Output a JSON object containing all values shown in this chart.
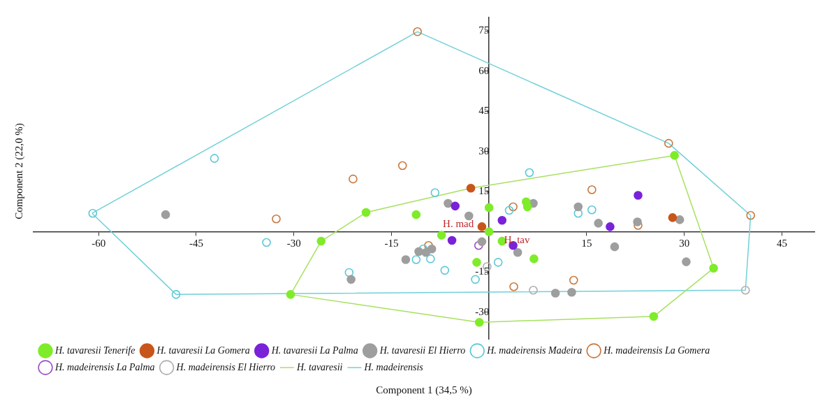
{
  "chart_data": {
    "type": "scatter",
    "xlabel": "Component 1 (34,5 %)",
    "ylabel": "Component 2 (22,0 %)",
    "xlim": [
      -70,
      50
    ],
    "xticks": [
      -60,
      -45,
      -30,
      -15,
      15,
      30,
      45
    ],
    "ylim": [
      -40,
      80
    ],
    "yticks": [
      -30,
      -15,
      15,
      30,
      45,
      60,
      75
    ],
    "grid": false,
    "legend": "bottom left",
    "marker": "circle",
    "annotations": [
      "H. mad",
      "H. tav"
    ],
    "series": [
      {
        "name": "H. tavaresii Tenerife",
        "color": "#7fec2a",
        "x": [
          28.5,
          34.5,
          25.3,
          -1.5,
          -30.5,
          -25.8,
          -18.9,
          -11.2,
          -7.3,
          0,
          0,
          5.7,
          5.9,
          2.0,
          -1.9,
          6.9
        ],
        "values": [
          28.5,
          -13.6,
          -31.6,
          -33.8,
          -23.4,
          -3.5,
          7.2,
          6.4,
          -1.3,
          9.0,
          0,
          11.2,
          9.3,
          -3.5,
          -11.4,
          -10.1
        ]
      },
      {
        "name": "H. tavaresii La Gomera",
        "color": "#c8561a",
        "x": [
          -2.8,
          -1.1,
          28.2
        ],
        "values": [
          16.3,
          1.9,
          5.3
        ]
      },
      {
        "name": "H. tavaresii La Palma",
        "color": "#7a22d8",
        "x": [
          -5.2,
          2.0,
          -5.7,
          3.7,
          22.9,
          18.6
        ],
        "values": [
          9.6,
          4.3,
          -3.2,
          -5.1,
          13.6,
          1.9
        ]
      },
      {
        "name": "H. tavaresii El Hierro",
        "color": "#9e9e9e",
        "x": [
          -49.7,
          -6.3,
          -3.1,
          6.8,
          -1.1,
          4.4,
          -8.8,
          -9.7,
          -10.8,
          -12.8,
          -21.2,
          13.7,
          16.8,
          19.3,
          22.8,
          29.3,
          30.3,
          10.2,
          12.7
        ],
        "values": [
          6.4,
          10.6,
          5.9,
          10.6,
          -3.7,
          -7.7,
          -6.4,
          -7.7,
          -7.4,
          -10.4,
          -17.8,
          9.3,
          3.2,
          -5.6,
          3.7,
          4.5,
          -11.2,
          -22.9,
          -22.6
        ]
      },
      {
        "name": "H. madeirensis Madeira",
        "color": "#5cc8d8",
        "x": [
          -60.9,
          -48.1,
          -42.2,
          -34.2,
          -8.3,
          6.2,
          3.1,
          -21.5,
          -11.2,
          -9.0,
          -10.1,
          -6.8,
          -2.1,
          1.4,
          13.7,
          15.8
        ],
        "values": [
          6.9,
          -23.4,
          27.4,
          -4.0,
          14.6,
          22.1,
          8.0,
          -15.2,
          -10.4,
          -10.1,
          -6.4,
          -14.4,
          -17.8,
          -11.4,
          6.9,
          8.2
        ]
      },
      {
        "name": "H. madeirensis La Gomera",
        "color": "#c87a40",
        "x": [
          -11.0,
          27.6,
          40.2,
          -20.9,
          -13.3,
          -32.7,
          -9.3,
          3.7,
          3.8,
          15.8,
          22.9,
          13.0
        ],
        "values": [
          74.7,
          33.0,
          6.1,
          19.7,
          24.7,
          4.8,
          -5.1,
          9.3,
          -20.5,
          15.7,
          2.4,
          -18.1
        ]
      },
      {
        "name": "H. madeirensis La Palma",
        "color": "#a050c8",
        "x": [
          -1.6
        ],
        "values": [
          -5.1
        ]
      },
      {
        "name": "H. madeirensis El Hierro",
        "color": "#b0b0b0",
        "x": [
          -0.3,
          6.8,
          39.4
        ],
        "values": [
          -13.0,
          -21.8,
          -21.8
        ]
      },
      {
        "name": "H. tavaresii",
        "type": "line",
        "color": "#a8e060",
        "marker": "none",
        "x": [
          -30.5,
          -25.8,
          -18.9,
          -2.8,
          28.5,
          34.5
        ],
        "values": [
          -23.4,
          -3.5,
          7.2,
          16.3,
          28.5,
          -13.6
        ]
      },
      {
        "type": "line",
        "color": "#a8e060",
        "marker": "none",
        "x": [
          -30.5,
          -1.5,
          25.3,
          34.5
        ],
        "values": [
          -23.4,
          -33.8,
          -31.6,
          -13.6
        ]
      },
      {
        "name": "H. madeirensis",
        "type": "line",
        "color": "#70d0d8",
        "marker": "none",
        "x": [
          -61.0,
          -11.0,
          27.6,
          40.2
        ],
        "values": [
          6.9,
          74.7,
          33.0,
          6.1
        ]
      },
      {
        "type": "line",
        "color": "#70d0d8",
        "marker": "none",
        "x": [
          -61.0,
          -48.1,
          39.4,
          40.2
        ],
        "values": [
          6.9,
          -23.4,
          -21.8,
          6.1
        ]
      }
    ]
  }
}
